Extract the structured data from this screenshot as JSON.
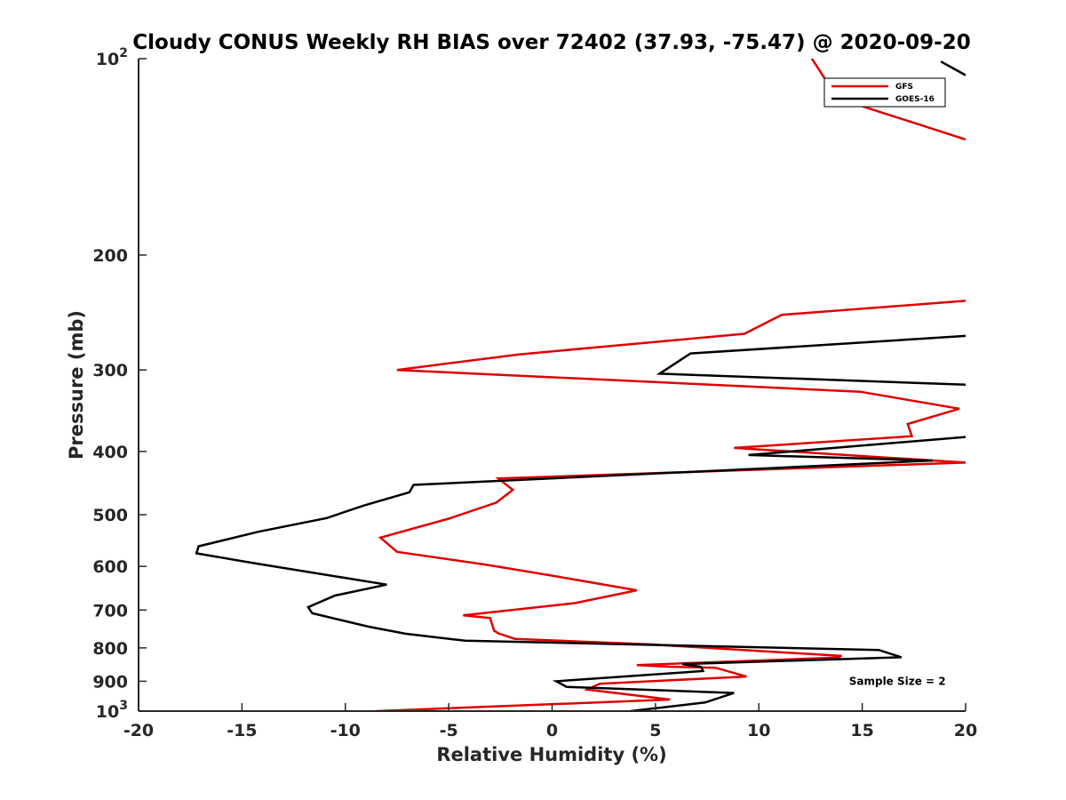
{
  "chart_data": {
    "type": "line",
    "title": "Cloudy CONUS Weekly RH BIAS over 72402 (37.93, -75.47) @ 2020-09-20",
    "xlabel": "Relative Humidity (%)",
    "ylabel": "Pressure (mb)",
    "xlim": [
      -20,
      20
    ],
    "ylim": [
      100,
      1000
    ],
    "yscale": "log",
    "y_reversed": true,
    "grid": false,
    "legend_position": "top-right",
    "x_ticks": [
      "-20",
      "-15",
      "-10",
      "-5",
      "0",
      "5",
      "10",
      "15",
      "20"
    ],
    "y_ticks": [
      {
        "value": 100,
        "base": "10",
        "exp": "2"
      },
      {
        "value": 200,
        "label": "200"
      },
      {
        "value": 300,
        "label": "300"
      },
      {
        "value": 400,
        "label": "400"
      },
      {
        "value": 500,
        "label": "500"
      },
      {
        "value": 600,
        "label": "600"
      },
      {
        "value": 700,
        "label": "700"
      },
      {
        "value": 800,
        "label": "800"
      },
      {
        "value": 900,
        "label": "900"
      },
      {
        "value": 1000,
        "base": "10",
        "exp": "3"
      }
    ],
    "series": [
      {
        "name": "GFS",
        "color": "#e00000",
        "segments": [
          [
            [
              12.3,
              97
            ],
            [
              13.8,
              115
            ],
            [
              20,
              133
            ]
          ],
          [
            [
              20,
              235
            ],
            [
              11.1,
              247
            ],
            [
              9.3,
              264
            ],
            [
              -1.6,
              284
            ],
            [
              -7.5,
              300
            ],
            [
              14.9,
              324
            ],
            [
              19.7,
              344
            ],
            [
              17.2,
              363
            ],
            [
              17.4,
              379
            ],
            [
              8.8,
              395
            ],
            [
              20,
              416
            ],
            [
              -2.6,
              440
            ],
            [
              -1.9,
              458
            ],
            [
              -2.7,
              479
            ],
            [
              -5.0,
              507
            ],
            [
              -8.3,
              542
            ],
            [
              -7.5,
              570
            ],
            [
              -3.1,
              597
            ],
            [
              0,
              620
            ],
            [
              4.1,
              653
            ],
            [
              1.1,
              683
            ],
            [
              -4.3,
              713
            ],
            [
              -3.0,
              720
            ],
            [
              -2.8,
              753
            ],
            [
              -2.6,
              760
            ],
            [
              -1.8,
              775
            ],
            [
              4.7,
              790
            ],
            [
              14.0,
              823
            ],
            [
              13.8,
              828
            ],
            [
              4.1,
              850
            ],
            [
              5.7,
              855
            ],
            [
              7.9,
              858
            ],
            [
              9.4,
              885
            ],
            [
              2.3,
              908
            ],
            [
              1.7,
              927
            ],
            [
              5.7,
              960
            ],
            [
              -8.5,
              1000
            ]
          ]
        ]
      },
      {
        "name": "GOES-16",
        "color": "#000000",
        "segments": [
          [
            [
              18.8,
              101
            ],
            [
              20,
              106
            ]
          ],
          [
            [
              20,
              266
            ],
            [
              6.7,
              283
            ],
            [
              5.2,
              304
            ],
            [
              20,
              316
            ]
          ],
          [
            [
              20,
              380
            ],
            [
              9.5,
              405
            ],
            [
              18.4,
              413
            ],
            [
              -6.7,
              450
            ],
            [
              -6.9,
              462
            ],
            [
              -9.1,
              484
            ],
            [
              -10.9,
              506
            ],
            [
              -14.2,
              531
            ],
            [
              -17.1,
              559
            ],
            [
              -17.2,
              573
            ],
            [
              -14.3,
              594
            ],
            [
              -8.0,
              640
            ],
            [
              -10.5,
              665
            ],
            [
              -11.8,
              693
            ],
            [
              -11.6,
              708
            ],
            [
              -8.9,
              742
            ],
            [
              -7.1,
              761
            ],
            [
              -4.2,
              780
            ],
            [
              15.8,
              806
            ],
            [
              16.9,
              827
            ],
            [
              6.3,
              847
            ],
            [
              7.2,
              855
            ],
            [
              7.3,
              868
            ],
            [
              0.2,
              900
            ],
            [
              0.7,
              918
            ],
            [
              8.8,
              938
            ],
            [
              7.4,
              970
            ],
            [
              3.8,
              1000
            ]
          ]
        ]
      }
    ],
    "annotations": [
      {
        "text": "Sample Size = 2",
        "x": 16.7,
        "y": 900
      }
    ]
  }
}
